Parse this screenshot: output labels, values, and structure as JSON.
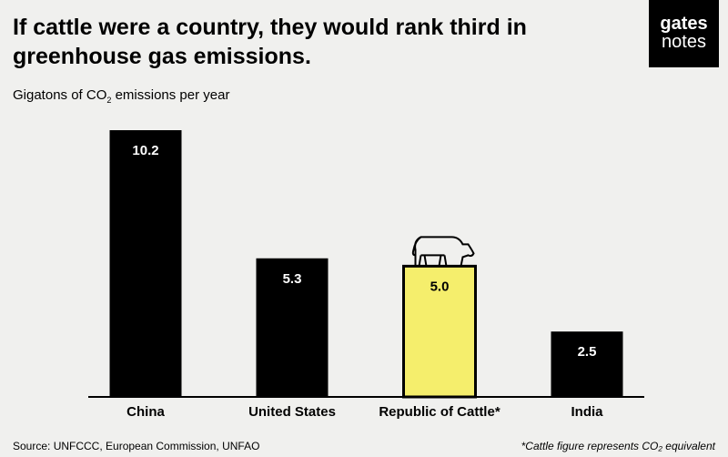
{
  "title": "If cattle were a country, they would rank third in greenhouse gas emissions.",
  "logo": {
    "line1": "gates",
    "line2": "notes"
  },
  "source": "Source: UNFCCC, European Commission, UNFAO",
  "footnote": "*Cattle figure represents CO₂ equivalent",
  "chart_data": {
    "type": "bar",
    "title": "If cattle were a country, they would rank third in greenhouse gas emissions.",
    "ylabel_prefix": "Gigatons of CO",
    "ylabel_sub": "2",
    "ylabel_suffix": " emissions per year",
    "categories": [
      "China",
      "United States",
      "Republic of Cattle*",
      "India"
    ],
    "values": [
      10.2,
      5.3,
      5.0,
      2.5
    ],
    "value_labels": [
      "10.2",
      "5.3",
      "5.0",
      "2.5"
    ],
    "colors": [
      "#000000",
      "#000000",
      "#f5ee6c",
      "#000000"
    ],
    "highlight_index": 2,
    "ylim": [
      0,
      10.2
    ],
    "grid": false
  }
}
